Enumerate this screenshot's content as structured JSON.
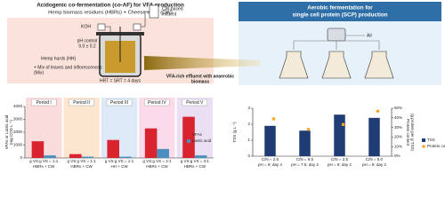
{
  "left_panel": {
    "title": "Acidogenic co-fermentation (co-AF) for VFA production",
    "subtitle": "Hemp biomass residues (HBRs) + Cheese whey (CW)"
  },
  "right_panel": {
    "title": [
      "Aerobic fermentation for",
      "single cell protein (SCP) production"
    ]
  },
  "diagram": {
    "koh": "KOH",
    "influent": [
      "CW-based",
      "influent"
    ],
    "ph": [
      "pH control",
      "9.0 ± 0.2"
    ],
    "hemp": [
      "Hemp hurds (HH)",
      "+ Mix of leaves and inflorescences",
      "(Mix)"
    ],
    "hrt": "HRT = SRT = 4 days",
    "effluent": [
      "VFA-rich effluent with anaerobic",
      "biomass"
    ],
    "air": "Air"
  },
  "chart_data": [
    {
      "type": "bar",
      "y_label": [
        "VFAs or Lactic acid",
        "(mg COD L⁻¹)"
      ],
      "periods": [
        "Period I",
        "Period II",
        "Period III",
        "Period IV",
        "Period V"
      ],
      "period_colors": [
        "#fbdcdc",
        "#fde6cf",
        "#dde9f6",
        "#fbdbe9",
        "#eadff3"
      ],
      "categories": [
        "g VS:g VS = 1:1\nHBRs + CW",
        "g VS:g VS = 1:1\nHBRs + CW",
        "g VS:g VS = 1:1\nHH + CW",
        "g VS:g VS = 2:1\nHBRs + CW",
        "g VS:g VS = 4:1\nHBRs + CW"
      ],
      "series": [
        {
          "name": "VFAs",
          "color": "#d9232e",
          "values": [
            1300,
            300,
            1400,
            2300,
            3200
          ]
        },
        {
          "name": "Lactic acid",
          "color": "#4a8fc0",
          "values": [
            200,
            100,
            100,
            700,
            200
          ]
        }
      ],
      "ylim": [
        0,
        4000
      ],
      "yticks": [
        0,
        1000,
        2000,
        3000,
        4000
      ]
    },
    {
      "type": "bar",
      "y_label": [
        "TSS (g L⁻¹)"
      ],
      "y2_label": [
        "Protein content",
        "(g protein per g TSS)"
      ],
      "categories": [
        "C/N = 2.5\npH = 9; day 4",
        "C/N = 9.5\npH = 7.5; day 2",
        "C/N = 2.5\npH = 9; day 2",
        "C/N = 5.0\npH = 9; day 2"
      ],
      "series": [
        {
          "name": "TSS",
          "color": "#1f3c74",
          "values": [
            1.9,
            1.6,
            2.6,
            2.4
          ]
        },
        {
          "name": "Protein content",
          "color": "#f5a623",
          "axis": "y2",
          "values": [
            39,
            28,
            33,
            47
          ]
        }
      ],
      "ylim": [
        0,
        3
      ],
      "yticks": [
        0,
        1,
        2,
        3
      ],
      "y2lim": [
        0,
        50
      ],
      "y2ticks": [
        {
          "value": 0,
          "label": "0%"
        },
        {
          "value": 10,
          "label": "10%"
        },
        {
          "value": 20,
          "label": "20%"
        },
        {
          "value": 30,
          "label": "30%"
        },
        {
          "value": 40,
          "label": "40%"
        },
        {
          "value": 50,
          "label": "50%"
        }
      ]
    }
  ]
}
